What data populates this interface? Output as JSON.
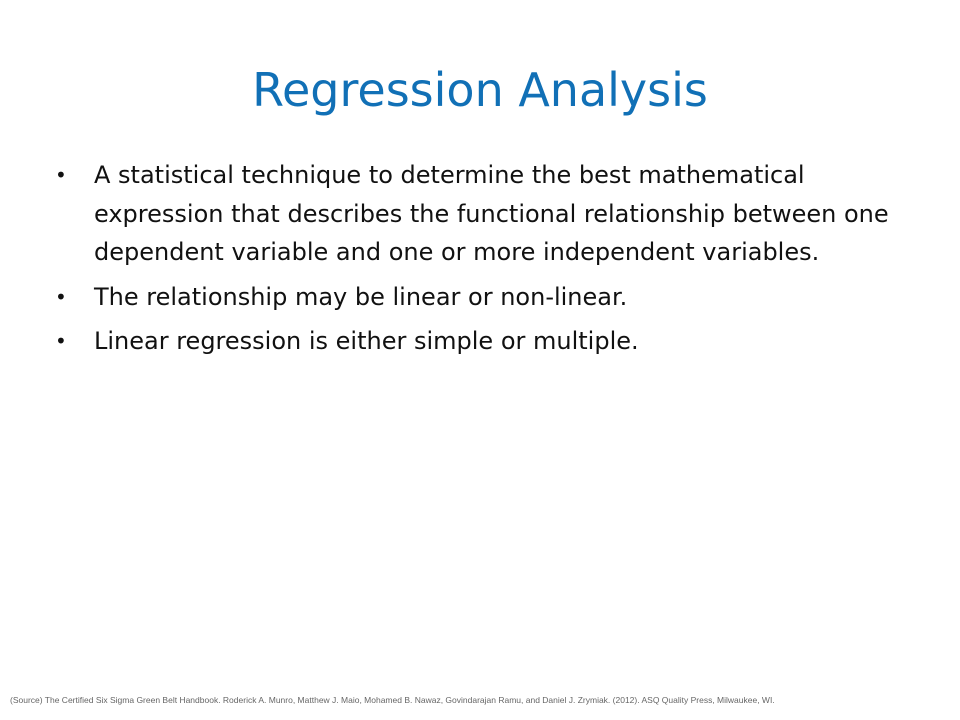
{
  "slide": {
    "title": "Regression Analysis",
    "bullets": [
      {
        "text": "A statistical technique to determine the best mathematical expression that describes the functional relationship between one dependent variable and one or more independent variables."
      },
      {
        "text": "The relationship may be linear or non-linear."
      },
      {
        "text": "Linear regression is either simple or multiple."
      }
    ],
    "bullet_symbol": "•",
    "source": "(Source) The Certified Six Sigma Green Belt Handbook. Roderick A. Munro, Matthew J. Maio, Mohamed B. Nawaz, Govindarajan Ramu, and Daniel J. Zrymiak. (2012). ASQ Quality Press,  Milwaukee, WI.",
    "colors": {
      "title": "#1170b6",
      "body": "#111111",
      "source": "#666666"
    }
  }
}
